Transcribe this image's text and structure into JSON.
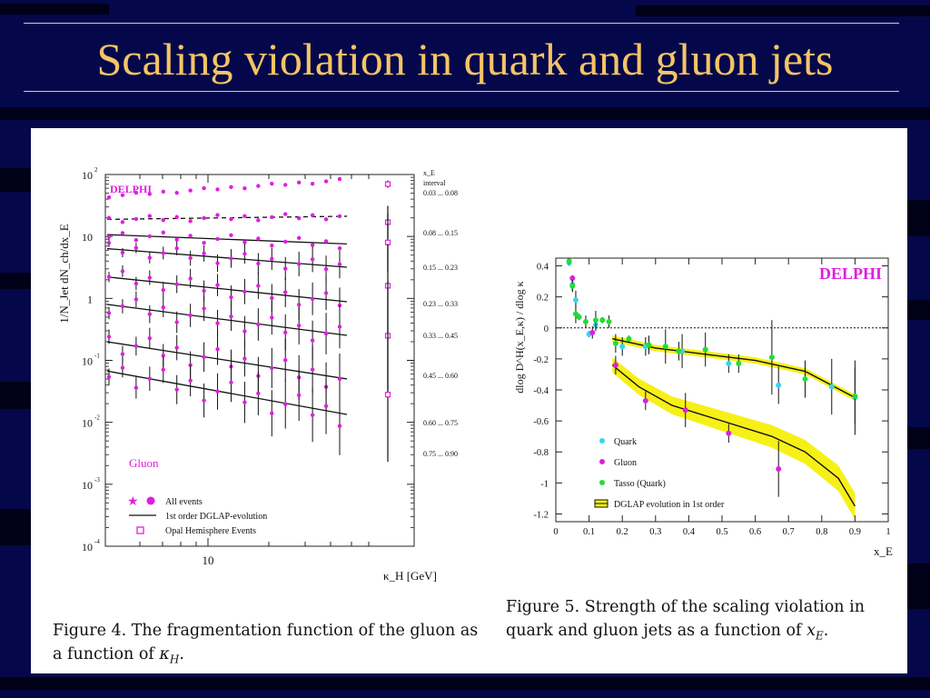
{
  "slide": {
    "title": "Scaling violation in quark and gluon jets"
  },
  "fig4": {
    "label": "DELPHI",
    "ylabel": "1/N_Jet dN_ch/dx_E",
    "xlabel": "κ_H [GeV]",
    "x_tick": "10",
    "y_ticks": [
      {
        "base": "10",
        "exp": "2"
      },
      {
        "base": "10",
        "exp": ""
      },
      {
        "base": "1",
        "exp": ""
      },
      {
        "base": "10",
        "exp": "-1"
      },
      {
        "base": "10",
        "exp": "-2"
      },
      {
        "base": "10",
        "exp": "-3"
      },
      {
        "base": "10",
        "exp": "-4"
      }
    ],
    "interval_header_1": "x_E",
    "interval_header_2": "interval",
    "intervals": [
      "0.03 ... 0.08",
      "0.08 ... 0.15",
      "0.15 ... 0.23",
      "0.23 ... 0.33",
      "0.33 ... 0.45",
      "0.45 ... 0.60",
      "0.60 ... 0.75",
      "0.75 ... 0.90"
    ],
    "gluon_label": "Gluon",
    "legend": [
      "All events",
      "1st order DGLAP-evolution",
      "Opal Hemisphere Events"
    ],
    "caption_prefix": "Figure 4.  The fragmentation function of the gluon as a function of ",
    "caption_math": "κ",
    "caption_sub": "H",
    "caption_suffix": ".",
    "colors": {
      "points": "#e01ee0",
      "opal": "#e01ee0"
    }
  },
  "chart_data": [
    {
      "type": "scatter",
      "title": "DELPHI",
      "xlabel": "κ_H [GeV]",
      "ylabel": "1/N_Jet dN_ch/dx_E",
      "y_scale": "log",
      "ylim": [
        0.0001,
        100
      ],
      "x_scale": "log",
      "x_ticks": [
        "10"
      ],
      "series_labels": [
        "0.03 ... 0.08",
        "0.08 ... 0.15",
        "0.15 ... 0.23",
        "0.23 ... 0.33",
        "0.33 ... 0.45",
        "0.45 ... 0.60",
        "0.60 ... 0.75",
        "0.75 ... 0.90"
      ],
      "series_level": [
        60,
        20,
        9,
        4.5,
        1.4,
        0.45,
        0.1,
        0.03
      ],
      "series_slope_decades": [
        0.25,
        0.05,
        -0.15,
        -0.3,
        -0.4,
        -0.5,
        -0.6,
        -0.7
      ],
      "points_per_series": 18,
      "opal_points": [
        70,
        17,
        8,
        1.6,
        0.25,
        0.028
      ],
      "legend": [
        "All events",
        "1st order DGLAP-evolution",
        "Opal Hemisphere Events"
      ]
    },
    {
      "type": "scatter",
      "title": "DELPHI",
      "xlabel": "x_E",
      "ylabel": "dlog D^H(x_E,κ) / dlog κ",
      "xlim": [
        0,
        1
      ],
      "ylim": [
        -1.25,
        0.45
      ],
      "x_ticks": [
        0,
        0.1,
        0.2,
        0.3,
        0.4,
        0.5,
        0.6,
        0.7,
        0.8,
        0.9,
        1
      ],
      "y_ticks": [
        0.4,
        0.2,
        0,
        -0.2,
        -0.4,
        -0.6,
        -0.8,
        -1,
        -1.2
      ],
      "series": [
        {
          "name": "Quark",
          "color": "#33d6f0",
          "points": [
            [
              0.04,
              0.42
            ],
            [
              0.05,
              0.28
            ],
            [
              0.06,
              0.18
            ],
            [
              0.1,
              -0.04
            ],
            [
              0.12,
              0.02
            ],
            [
              0.2,
              -0.12
            ],
            [
              0.27,
              -0.12
            ],
            [
              0.38,
              -0.15
            ],
            [
              0.52,
              -0.23
            ],
            [
              0.67,
              -0.37
            ],
            [
              0.83,
              -0.38
            ],
            [
              0.9,
              -0.45
            ]
          ]
        },
        {
          "name": "Gluon",
          "color": "#e01ee0",
          "points": [
            [
              0.05,
              0.32
            ],
            [
              0.11,
              -0.03
            ],
            [
              0.18,
              -0.24
            ],
            [
              0.27,
              -0.47
            ],
            [
              0.39,
              -0.53
            ],
            [
              0.52,
              -0.68
            ],
            [
              0.67,
              -0.91
            ]
          ]
        },
        {
          "name": "Tasso (Quark)",
          "color": "#22dd33",
          "points": [
            [
              0.04,
              0.43
            ],
            [
              0.05,
              0.27
            ],
            [
              0.06,
              0.09
            ],
            [
              0.07,
              0.07
            ],
            [
              0.09,
              0.04
            ],
            [
              0.12,
              0.05
            ],
            [
              0.14,
              0.05
            ],
            [
              0.16,
              0.04
            ],
            [
              0.18,
              -0.1
            ],
            [
              0.22,
              -0.07
            ],
            [
              0.28,
              -0.11
            ],
            [
              0.33,
              -0.12
            ],
            [
              0.37,
              -0.15
            ],
            [
              0.45,
              -0.14
            ],
            [
              0.55,
              -0.23
            ],
            [
              0.65,
              -0.19
            ],
            [
              0.75,
              -0.33
            ],
            [
              0.9,
              -0.44
            ]
          ]
        }
      ],
      "dglap_quark": [
        [
          0.17,
          -0.07
        ],
        [
          0.3,
          -0.13
        ],
        [
          0.45,
          -0.17
        ],
        [
          0.6,
          -0.21
        ],
        [
          0.75,
          -0.28
        ],
        [
          0.9,
          -0.45
        ]
      ],
      "dglap_gluon": [
        [
          0.17,
          -0.24
        ],
        [
          0.25,
          -0.38
        ],
        [
          0.35,
          -0.5
        ],
        [
          0.5,
          -0.6
        ],
        [
          0.65,
          -0.7
        ],
        [
          0.75,
          -0.8
        ],
        [
          0.85,
          -0.97
        ],
        [
          0.9,
          -1.15
        ]
      ],
      "reference_line": 0,
      "legend": [
        "Quark",
        "Gluon",
        "Tasso (Quark)",
        "DGLAP evolution in 1st order"
      ]
    }
  ],
  "fig5": {
    "label": "DELPHI",
    "ylabel": "dlog D^H(x_E,κ) / dlog κ",
    "xlabel": "x_E",
    "legend": [
      "Quark",
      "Gluon",
      "Tasso (Quark)",
      "DGLAP evolution in 1st order"
    ],
    "caption_prefix": "Figure 5.  Strength of the scaling violation in quark and gluon jets as a function of ",
    "caption_math": "x",
    "caption_sub": "E",
    "caption_suffix": "."
  }
}
